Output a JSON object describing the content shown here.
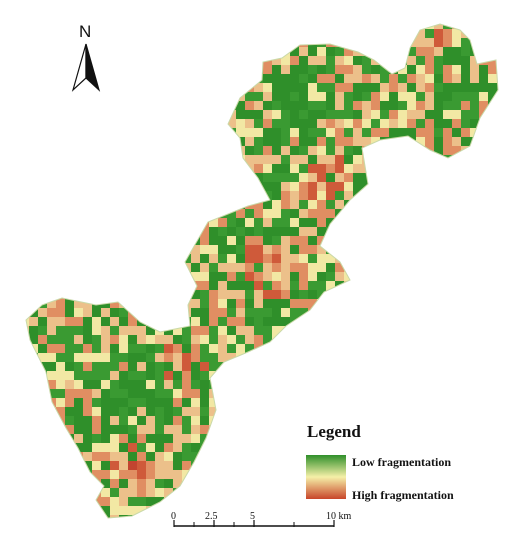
{
  "north_arrow": {
    "label": "N",
    "icon": "north-arrow-icon"
  },
  "legend": {
    "title": "Legend",
    "low_label": "Low fragmentation",
    "high_label": "High fragmentation",
    "colors": {
      "low": "#2f8f2a",
      "mid": "#f5f0a8",
      "high": "#c8452a"
    }
  },
  "scale_bar": {
    "ticks": [
      "0",
      "2.5",
      "5",
      "10 km"
    ]
  },
  "map_colors": [
    "#2f8f2a",
    "#3a9a32",
    "#f2e8a4",
    "#ecc08a",
    "#e08e62",
    "#cf5a3a",
    "#c24430"
  ]
}
